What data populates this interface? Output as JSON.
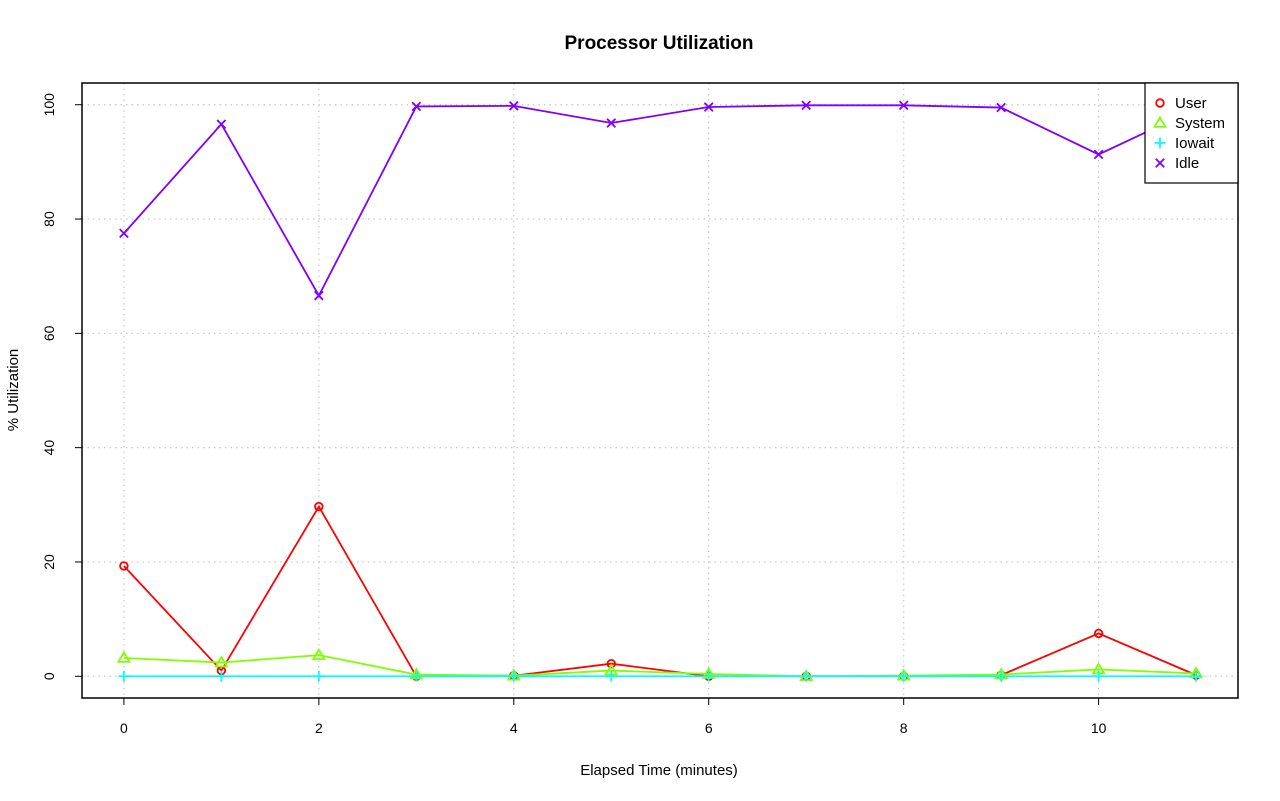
{
  "chart_data": {
    "type": "line",
    "title": "Processor Utilization",
    "xlabel": "Elapsed Time (minutes)",
    "ylabel": "% Utilization",
    "x": [
      0,
      1,
      2,
      3,
      4,
      5,
      6,
      7,
      8,
      9,
      10,
      11
    ],
    "xlim": [
      -0.43,
      11.43
    ],
    "ylim": [
      -3.8,
      103.8
    ],
    "x_ticks": [
      "0",
      "2",
      "4",
      "6",
      "8",
      "10"
    ],
    "x_tick_values": [
      0,
      2,
      4,
      6,
      8,
      10
    ],
    "y_ticks": [
      "0",
      "20",
      "40",
      "60",
      "80",
      "100"
    ],
    "y_tick_values": [
      0,
      20,
      40,
      60,
      80,
      100
    ],
    "grid": true,
    "legend_position": "top-right",
    "series": [
      {
        "name": "User",
        "color": "#ff0000",
        "marker": "circle",
        "values": [
          19.3,
          1.0,
          29.7,
          0.0,
          0.1,
          2.2,
          0.0,
          0.0,
          0.0,
          0.2,
          7.5,
          0.2
        ]
      },
      {
        "name": "System",
        "color": "#80ff00",
        "marker": "triangle",
        "values": [
          3.2,
          2.4,
          3.7,
          0.3,
          0.1,
          1.0,
          0.4,
          0.0,
          0.1,
          0.3,
          1.2,
          0.5
        ]
      },
      {
        "name": "Iowait",
        "color": "#00ffff",
        "marker": "plus",
        "values": [
          0.0,
          0.0,
          0.0,
          0.0,
          0.0,
          0.0,
          0.0,
          0.0,
          0.0,
          0.0,
          0.0,
          0.0
        ]
      },
      {
        "name": "Idle",
        "color": "#8000ff",
        "marker": "cross",
        "values": [
          77.5,
          96.6,
          66.6,
          99.7,
          99.8,
          96.8,
          99.6,
          99.9,
          99.9,
          99.5,
          91.3,
          99.3
        ]
      }
    ]
  }
}
